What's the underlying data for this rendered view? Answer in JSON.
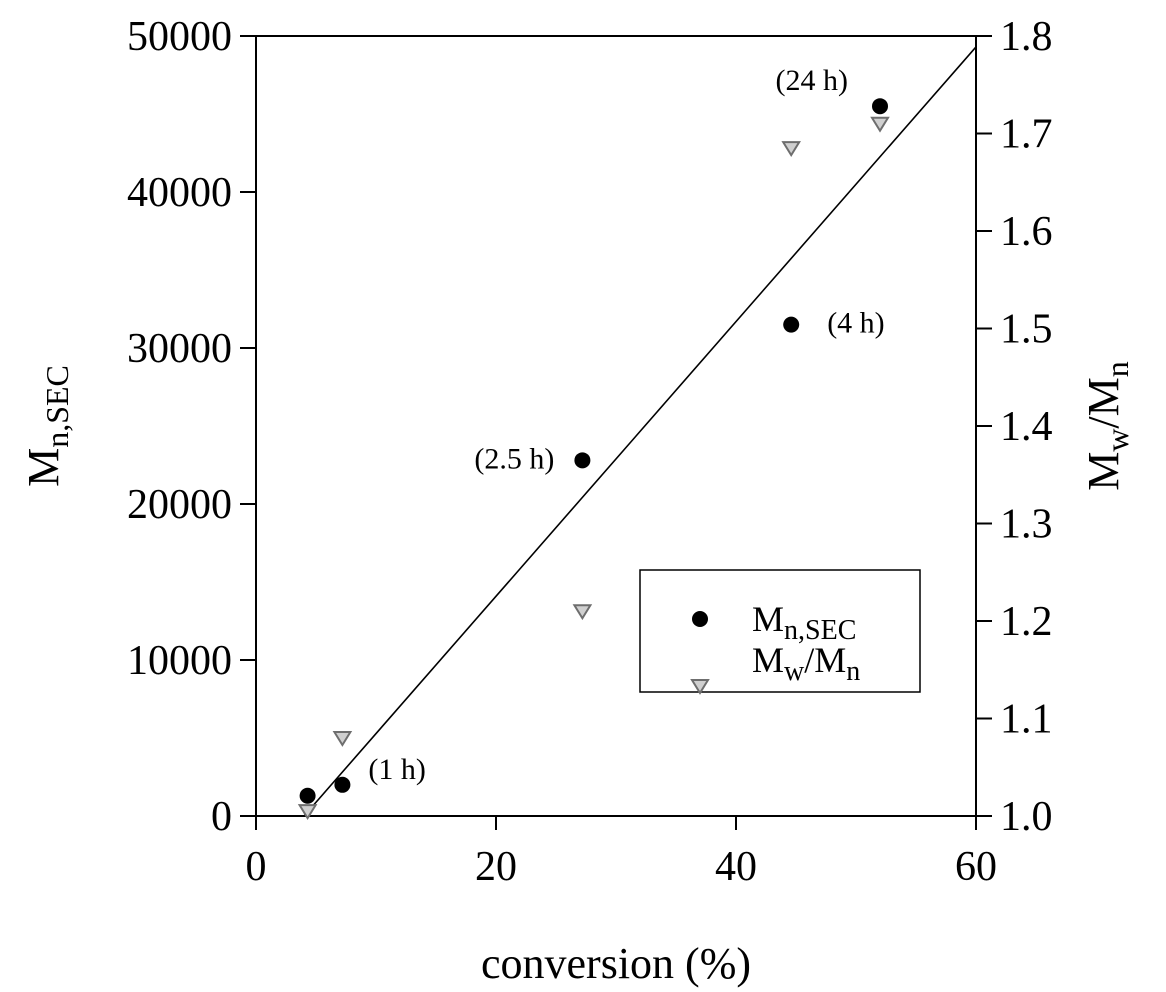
{
  "chart_data": {
    "type": "scatter",
    "xlabel": "conversion (%)",
    "ylabel_left": {
      "main": "M",
      "sub": "n,SEC"
    },
    "ylabel_right": {
      "a": "M",
      "a_sub": "w",
      "slash": "/",
      "b": "M",
      "b_sub": "n"
    },
    "xlim": [
      0,
      60
    ],
    "ylim_left": [
      0,
      50000
    ],
    "ylim_right": [
      1.0,
      1.8
    ],
    "x_ticks": [
      "0",
      "20",
      "40",
      "60"
    ],
    "y_left_ticks": [
      "0",
      "10000",
      "20000",
      "30000",
      "40000",
      "50000"
    ],
    "y_right_ticks": [
      "1.0",
      "1.1",
      "1.2",
      "1.3",
      "1.4",
      "1.5",
      "1.6",
      "1.7",
      "1.8"
    ],
    "series": [
      {
        "name": "Mn,SEC",
        "axis": "left",
        "marker": "filled-circle",
        "color": "#000000",
        "points": [
          [
            4.3,
            1300
          ],
          [
            7.2,
            2000
          ],
          [
            27.2,
            22800
          ],
          [
            44.6,
            31500
          ],
          [
            52.0,
            45500
          ]
        ]
      },
      {
        "name": "Mw/Mn",
        "axis": "right",
        "marker": "open-down-triangle",
        "color": "#8a8a8a",
        "points": [
          [
            4.3,
            1.005
          ],
          [
            7.2,
            1.08
          ],
          [
            27.2,
            1.21
          ],
          [
            44.6,
            1.685
          ],
          [
            52.0,
            1.71
          ]
        ]
      }
    ],
    "fit_line": {
      "axis": "left",
      "points": [
        [
          4.0,
          0
        ],
        [
          60,
          49300
        ]
      ]
    },
    "annotations": [
      {
        "text": "(1 h)",
        "x": 7.2,
        "y": 2000
      },
      {
        "text": "(2.5 h)",
        "x": 27.2,
        "y": 22800
      },
      {
        "text": "(4 h)",
        "x": 44.6,
        "y": 31500
      },
      {
        "text": "(24 h)",
        "x": 52.0,
        "y": 45500
      }
    ],
    "legend": {
      "position": "lower-right",
      "entries": [
        {
          "main": "M",
          "sub": "n,SEC",
          "marker": "filled-circle"
        },
        {
          "main": "M",
          "sub": "w",
          "slash": "/",
          "main2": "M",
          "sub2": "n",
          "marker": "open-down-triangle"
        }
      ]
    },
    "grid": false
  }
}
